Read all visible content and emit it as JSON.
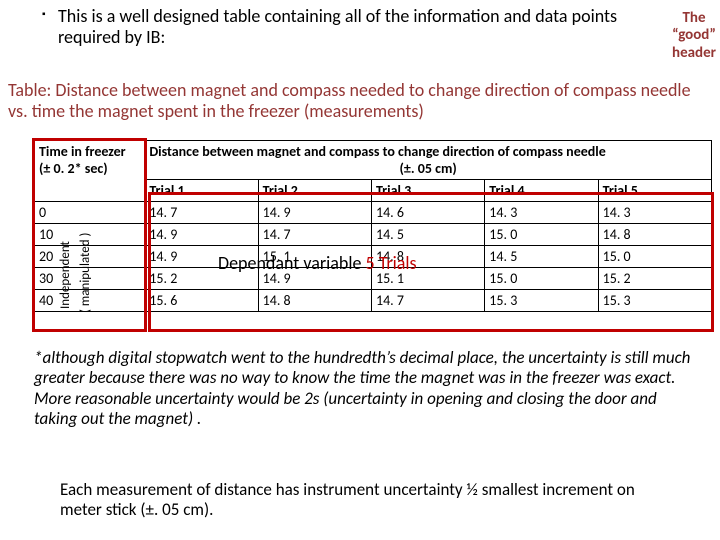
{
  "intro": {
    "bullet": "▪",
    "text": "This is a well designed table containing all of   the information and data points required by IB:"
  },
  "good_header": {
    "l1": "The",
    "l2": "“good”",
    "l3": "header"
  },
  "caption": "Table: Distance between magnet and compass needed to  change direction of compass needle vs. time the magnet spent in the freezer (measurements)",
  "table": {
    "col0_header_l1": "Time in freezer",
    "col0_header_l2": "(± 0. 2* sec)",
    "dist_header_l1": "Distance between magnet and compass to change direction of compass needle",
    "dist_header_l2": "(±. 05 cm)",
    "trial_headers": [
      "Trial 1",
      "Trial 2",
      "Trial 3",
      "Trial 4",
      "Trial 5"
    ],
    "rows": [
      {
        "t": "0",
        "v": [
          "14. 7",
          "14. 9",
          "14. 6",
          "14. 3",
          "14. 3"
        ]
      },
      {
        "t": "10",
        "v": [
          "14. 9",
          "14. 7",
          "14. 5",
          "15. 0",
          "14. 8"
        ]
      },
      {
        "t": "20",
        "v": [
          "14. 9",
          "15. 1",
          "14. 8",
          "14. 5",
          "15. 0"
        ]
      },
      {
        "t": "30",
        "v": [
          "15. 2",
          "14. 9",
          "15. 1",
          "15. 0",
          "15. 2"
        ]
      },
      {
        "t": "40",
        "v": [
          "15. 6",
          "14. 8",
          "14. 7",
          "15. 3",
          "15. 3"
        ]
      }
    ]
  },
  "vlabels": {
    "independent": "Independent",
    "manipulated": "( manipulated )"
  },
  "overlay": {
    "dep_a": "Dependant variable ",
    "dep_b": "5 Trials"
  },
  "footnote": "*although digital stopwatch went to the hundredth’s decimal place, the uncertainty is still much greater because there was no way to know the time the magnet was in the freezer was exact. More reasonable uncertainty would be 2s   (uncertainty in opening and closing the door and taking out the magnet)  .",
  "bottom_note": "Each measurement of distance has instrument uncertainty ½ smallest increment on meter stick  (±. 05 cm).",
  "colors": {
    "accent": "#943634",
    "red": "#c00000",
    "text": "#000000",
    "bg": "#ffffff"
  }
}
